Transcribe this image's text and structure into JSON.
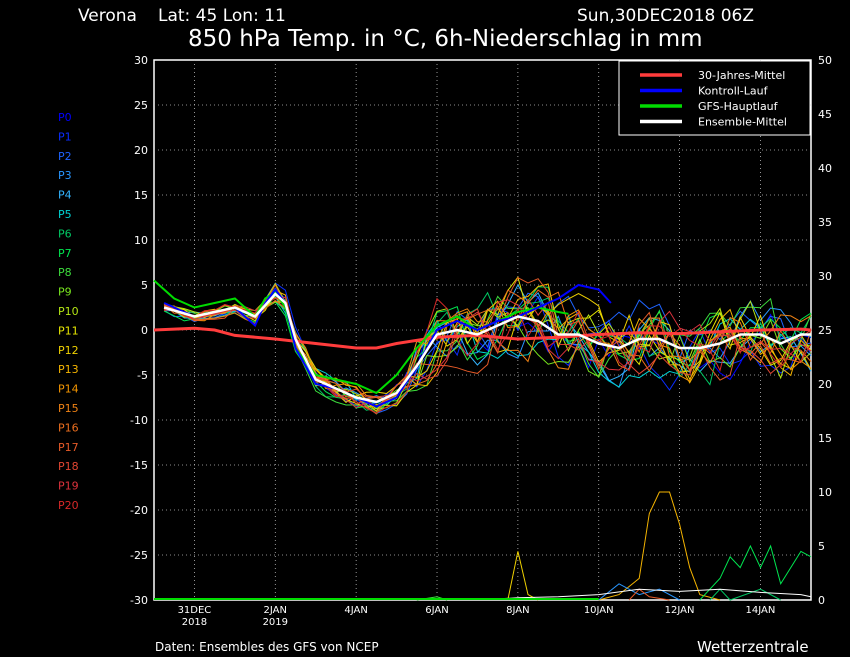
{
  "header": {
    "location": "Verona",
    "coords": "Lat: 45 Lon: 11",
    "run": "Sun,30DEC2018 06Z",
    "title": "850 hPa Temp. in °C, 6h-Niederschlag in mm"
  },
  "footer": {
    "source": "Daten: Ensembles des GFS von NCEP",
    "brand": "Wetterzentrale"
  },
  "members": [
    {
      "label": "P0",
      "color": "#0000ff"
    },
    {
      "label": "P1",
      "color": "#0a2dff"
    },
    {
      "label": "P2",
      "color": "#1e64ff"
    },
    {
      "label": "P3",
      "color": "#2896ff"
    },
    {
      "label": "P4",
      "color": "#32b4ff"
    },
    {
      "label": "P5",
      "color": "#00d2d2"
    },
    {
      "label": "P6",
      "color": "#00c864"
    },
    {
      "label": "P7",
      "color": "#00e650"
    },
    {
      "label": "P8",
      "color": "#3cdc3c"
    },
    {
      "label": "P9",
      "color": "#78e61e"
    },
    {
      "label": "P10",
      "color": "#b4e614"
    },
    {
      "label": "P11",
      "color": "#e6e600"
    },
    {
      "label": "P12",
      "color": "#f0d200"
    },
    {
      "label": "P13",
      "color": "#f5b400"
    },
    {
      "label": "P14",
      "color": "#f59600"
    },
    {
      "label": "P15",
      "color": "#f08214"
    },
    {
      "label": "P16",
      "color": "#eb6e1e"
    },
    {
      "label": "P17",
      "color": "#e65a28"
    },
    {
      "label": "P18",
      "color": "#e14632"
    },
    {
      "label": "P19",
      "color": "#dc323c"
    },
    {
      "label": "P20",
      "color": "#d72828"
    }
  ],
  "chart_data": {
    "type": "line",
    "title": "850 hPa Temp. in °C, 6h-Niederschlag in mm",
    "y_left": {
      "range": [
        -30,
        30
      ],
      "ticks": [
        30,
        25,
        20,
        15,
        10,
        5,
        0,
        -5,
        -10,
        -15,
        -20,
        -25,
        -30
      ]
    },
    "y_right": {
      "range": [
        0,
        50
      ],
      "ticks": [
        50,
        45,
        40,
        35,
        30,
        25,
        20,
        15,
        10,
        5,
        0
      ]
    },
    "x": {
      "range_days": [
        0,
        16.25
      ],
      "tick_labels": [
        {
          "day": 1,
          "label": "31DEC",
          "label2": "2018"
        },
        {
          "day": 3,
          "label": "2JAN",
          "label2": "2019"
        },
        {
          "day": 5,
          "label": "4JAN",
          "label2": ""
        },
        {
          "day": 7,
          "label": "6JAN",
          "label2": ""
        },
        {
          "day": 9,
          "label": "8JAN",
          "label2": ""
        },
        {
          "day": 11,
          "label": "10JAN",
          "label2": ""
        },
        {
          "day": 13,
          "label": "12JAN",
          "label2": ""
        },
        {
          "day": 15,
          "label": "14JAN",
          "label2": ""
        }
      ]
    },
    "grid": true,
    "legend": {
      "placement": "top-right",
      "entries": [
        {
          "name": "30-Jahres-Mittel",
          "color": "#ff3c3c"
        },
        {
          "name": "Kontroll-Lauf",
          "color": "#0000ff"
        },
        {
          "name": "GFS-Hauptlauf",
          "color": "#00dc00"
        },
        {
          "name": "Ensemble-Mittel",
          "color": "#ffffff"
        }
      ]
    },
    "series_main": [
      {
        "name": "30-Jahres-Mittel",
        "color": "#ff3c3c",
        "width": 3,
        "points": [
          [
            0,
            0
          ],
          [
            1,
            0.2
          ],
          [
            1.5,
            0
          ],
          [
            2,
            -0.6
          ],
          [
            3,
            -1
          ],
          [
            4,
            -1.5
          ],
          [
            5,
            -2
          ],
          [
            5.5,
            -2
          ],
          [
            6,
            -1.5
          ],
          [
            7,
            -0.8
          ],
          [
            8,
            -0.6
          ],
          [
            9,
            -1
          ],
          [
            10,
            -0.8
          ],
          [
            11,
            -0.5
          ],
          [
            12,
            -0.3
          ],
          [
            13,
            -0.4
          ],
          [
            14,
            -0.2
          ],
          [
            15,
            0
          ],
          [
            16,
            0.1
          ],
          [
            16.25,
            0
          ]
        ]
      },
      {
        "name": "GFS-Hauptlauf",
        "color": "#00dc00",
        "width": 2,
        "points": [
          [
            0,
            5.5
          ],
          [
            0.5,
            3.5
          ],
          [
            1,
            2.5
          ],
          [
            1.5,
            3
          ],
          [
            2,
            3.5
          ],
          [
            2.5,
            1.5
          ],
          [
            2.75,
            3.5
          ],
          [
            3,
            4.2
          ],
          [
            3.25,
            2.5
          ],
          [
            3.5,
            -2
          ],
          [
            4,
            -5
          ],
          [
            4.5,
            -5.5
          ],
          [
            5,
            -6
          ],
          [
            5.5,
            -7
          ],
          [
            6,
            -5
          ],
          [
            6.5,
            -2
          ],
          [
            7,
            0.5
          ],
          [
            7.5,
            1.5
          ],
          [
            8,
            0
          ],
          [
            8.5,
            1
          ],
          [
            9,
            2
          ],
          [
            9.5,
            2.5
          ],
          [
            10,
            2
          ],
          [
            10.25,
            1.8
          ]
        ]
      },
      {
        "name": "Kontroll-Lauf",
        "color": "#0000ff",
        "width": 2,
        "points": [
          [
            0.25,
            3
          ],
          [
            1,
            1.5
          ],
          [
            1.5,
            2
          ],
          [
            2,
            2.5
          ],
          [
            2.5,
            0.5
          ],
          [
            2.75,
            3
          ],
          [
            3,
            4.5
          ],
          [
            3.25,
            3
          ],
          [
            3.5,
            -2
          ],
          [
            4,
            -6
          ],
          [
            4.5,
            -6.5
          ],
          [
            5,
            -7.5
          ],
          [
            5.5,
            -8.5
          ],
          [
            6,
            -7.5
          ],
          [
            6.5,
            -4
          ],
          [
            7,
            0
          ],
          [
            7.5,
            1
          ],
          [
            8,
            0
          ],
          [
            8.5,
            1
          ],
          [
            9,
            1.5
          ],
          [
            9.5,
            2.5
          ],
          [
            10,
            3.5
          ],
          [
            10.5,
            5
          ],
          [
            11,
            4.5
          ],
          [
            11.3,
            3
          ]
        ]
      },
      {
        "name": "Ensemble-Mittel",
        "color": "#ffffff",
        "width": 2.5,
        "points": [
          [
            0.25,
            2.5
          ],
          [
            1,
            1.5
          ],
          [
            1.5,
            2
          ],
          [
            2,
            2.5
          ],
          [
            2.5,
            1.5
          ],
          [
            3,
            4
          ],
          [
            3.25,
            3
          ],
          [
            3.5,
            -1
          ],
          [
            4,
            -5.5
          ],
          [
            4.5,
            -6.5
          ],
          [
            5,
            -7.5
          ],
          [
            5.5,
            -8
          ],
          [
            6,
            -7
          ],
          [
            6.5,
            -4
          ],
          [
            7,
            -0.5
          ],
          [
            7.5,
            0
          ],
          [
            8,
            -0.5
          ],
          [
            8.5,
            0.5
          ],
          [
            9,
            1.5
          ],
          [
            9.5,
            1
          ],
          [
            10,
            -0.5
          ],
          [
            10.5,
            -0.5
          ],
          [
            11,
            -1.5
          ],
          [
            11.5,
            -2
          ],
          [
            12,
            -1
          ],
          [
            12.5,
            -1
          ],
          [
            13,
            -2
          ],
          [
            13.5,
            -2
          ],
          [
            14,
            -1.5
          ],
          [
            14.5,
            -0.5
          ],
          [
            15,
            -0.5
          ],
          [
            15.5,
            -1.5
          ],
          [
            16,
            -0.5
          ],
          [
            16.25,
            -0.5
          ]
        ]
      }
    ],
    "precip_series": [
      {
        "color": "#f5b400",
        "points": [
          [
            11,
            0
          ],
          [
            11.5,
            0.5
          ],
          [
            12,
            2
          ],
          [
            12.25,
            8
          ],
          [
            12.5,
            10
          ],
          [
            12.75,
            10
          ],
          [
            13,
            7
          ],
          [
            13.25,
            3
          ],
          [
            13.5,
            0.5
          ],
          [
            14,
            0
          ]
        ]
      },
      {
        "color": "#f0d200",
        "points": [
          [
            8.75,
            0
          ],
          [
            9,
            4.5
          ],
          [
            9.25,
            0.5
          ],
          [
            9.5,
            0
          ]
        ]
      },
      {
        "color": "#00e650",
        "points": [
          [
            13.5,
            0
          ],
          [
            14,
            2
          ],
          [
            14.25,
            4
          ],
          [
            14.5,
            3
          ],
          [
            14.75,
            5
          ],
          [
            15,
            3
          ],
          [
            15.25,
            5
          ],
          [
            15.5,
            1.5
          ],
          [
            16,
            4.5
          ],
          [
            16.25,
            4
          ]
        ]
      },
      {
        "color": "#2896ff",
        "points": [
          [
            11,
            0
          ],
          [
            11.5,
            1.5
          ],
          [
            12,
            0.5
          ],
          [
            12.5,
            1
          ],
          [
            13,
            0
          ]
        ]
      },
      {
        "color": "#e65a28",
        "points": [
          [
            11.75,
            0
          ],
          [
            12,
            1
          ],
          [
            12.25,
            0.3
          ],
          [
            12.75,
            0
          ]
        ]
      },
      {
        "color": "#00c864",
        "points": [
          [
            13.75,
            0
          ],
          [
            14,
            1
          ],
          [
            14.25,
            0
          ],
          [
            15,
            1
          ],
          [
            15.5,
            0
          ]
        ]
      },
      {
        "color": "#ffffff",
        "points": [
          [
            8,
            0
          ],
          [
            9,
            0.2
          ],
          [
            10,
            0.3
          ],
          [
            11,
            0.5
          ],
          [
            12,
            1
          ],
          [
            13,
            0.8
          ],
          [
            14,
            1
          ],
          [
            15,
            0.7
          ],
          [
            16,
            0.5
          ],
          [
            16.25,
            0.3
          ]
        ]
      },
      {
        "color": "#3cdc3c",
        "points": [
          [
            6.5,
            0
          ],
          [
            7,
            0.3
          ],
          [
            7.25,
            0
          ]
        ]
      }
    ]
  }
}
